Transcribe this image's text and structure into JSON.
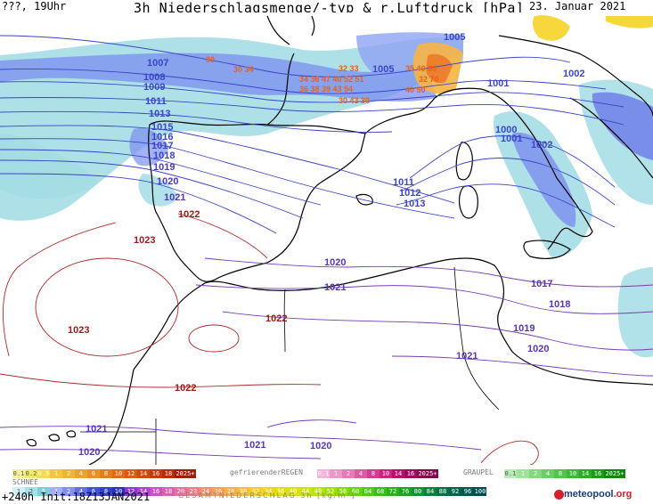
{
  "header": {
    "left": "???, 19Uhr",
    "title": "3h Niederschlagsmenge/-typ & r.Luftdruck [hPa]",
    "date": "23. Januar 2021"
  },
  "map": {
    "isobar_labels": [
      "1005",
      "1007",
      "1008",
      "1009",
      "1011",
      "1013",
      "1015",
      "1016",
      "1017",
      "1018",
      "1019",
      "1020",
      "1021",
      "1022",
      "1023",
      "1005",
      "1001",
      "1002",
      "1000",
      "1001",
      "1002",
      "1011",
      "1012",
      "1013",
      "1020",
      "1021",
      "1017",
      "1018",
      "1019",
      "1020",
      "1021",
      "1022",
      "1023",
      "1022",
      "1021",
      "1020",
      "1021",
      "1020"
    ],
    "precip_labels": [
      "30",
      "30 34",
      "32 33",
      "34 36 47 40 52 51",
      "36 38 39 43 54",
      "30 43 30",
      "35 40 60",
      "32 70",
      "40 50"
    ]
  },
  "legend": {
    "snow_scale": [
      "0.1",
      "0.2",
      "0.5",
      "1",
      "2",
      "4",
      "6",
      "8",
      "10",
      "12",
      "14",
      "16",
      "18",
      "2025+"
    ],
    "freezing_title": "gefrierenderREGEN",
    "freezing_scale": [
      "0.1",
      "1",
      "2",
      "4",
      "8",
      "10",
      "14",
      "16",
      "2025+"
    ],
    "graupel_title": "GRAUPEL",
    "graupel_scale": [
      "0.1",
      "1",
      "2",
      "4",
      "8",
      "10",
      "14",
      "16",
      "2025+"
    ],
    "snow_title": "SCHNEE",
    "rain_scale": [
      "1",
      "2",
      "5",
      "1",
      "2",
      "4",
      "6",
      "8",
      "10",
      "12",
      "14",
      "16",
      "18",
      "20",
      "22",
      "24",
      "26",
      "28",
      "30",
      "32",
      "34",
      "36",
      "40",
      "44",
      "48",
      "52",
      "56",
      "60",
      "64",
      "68",
      "72",
      "76",
      "80",
      "84",
      "88",
      "92",
      "96",
      "100"
    ],
    "total_title": "GESAMTNIEDERSCHLAG 3h [kg/m²]"
  },
  "footer": {
    "run": "+240h Init:18Z13JAN2021",
    "brand": "meteopool",
    "brand_suffix": ".org"
  }
}
